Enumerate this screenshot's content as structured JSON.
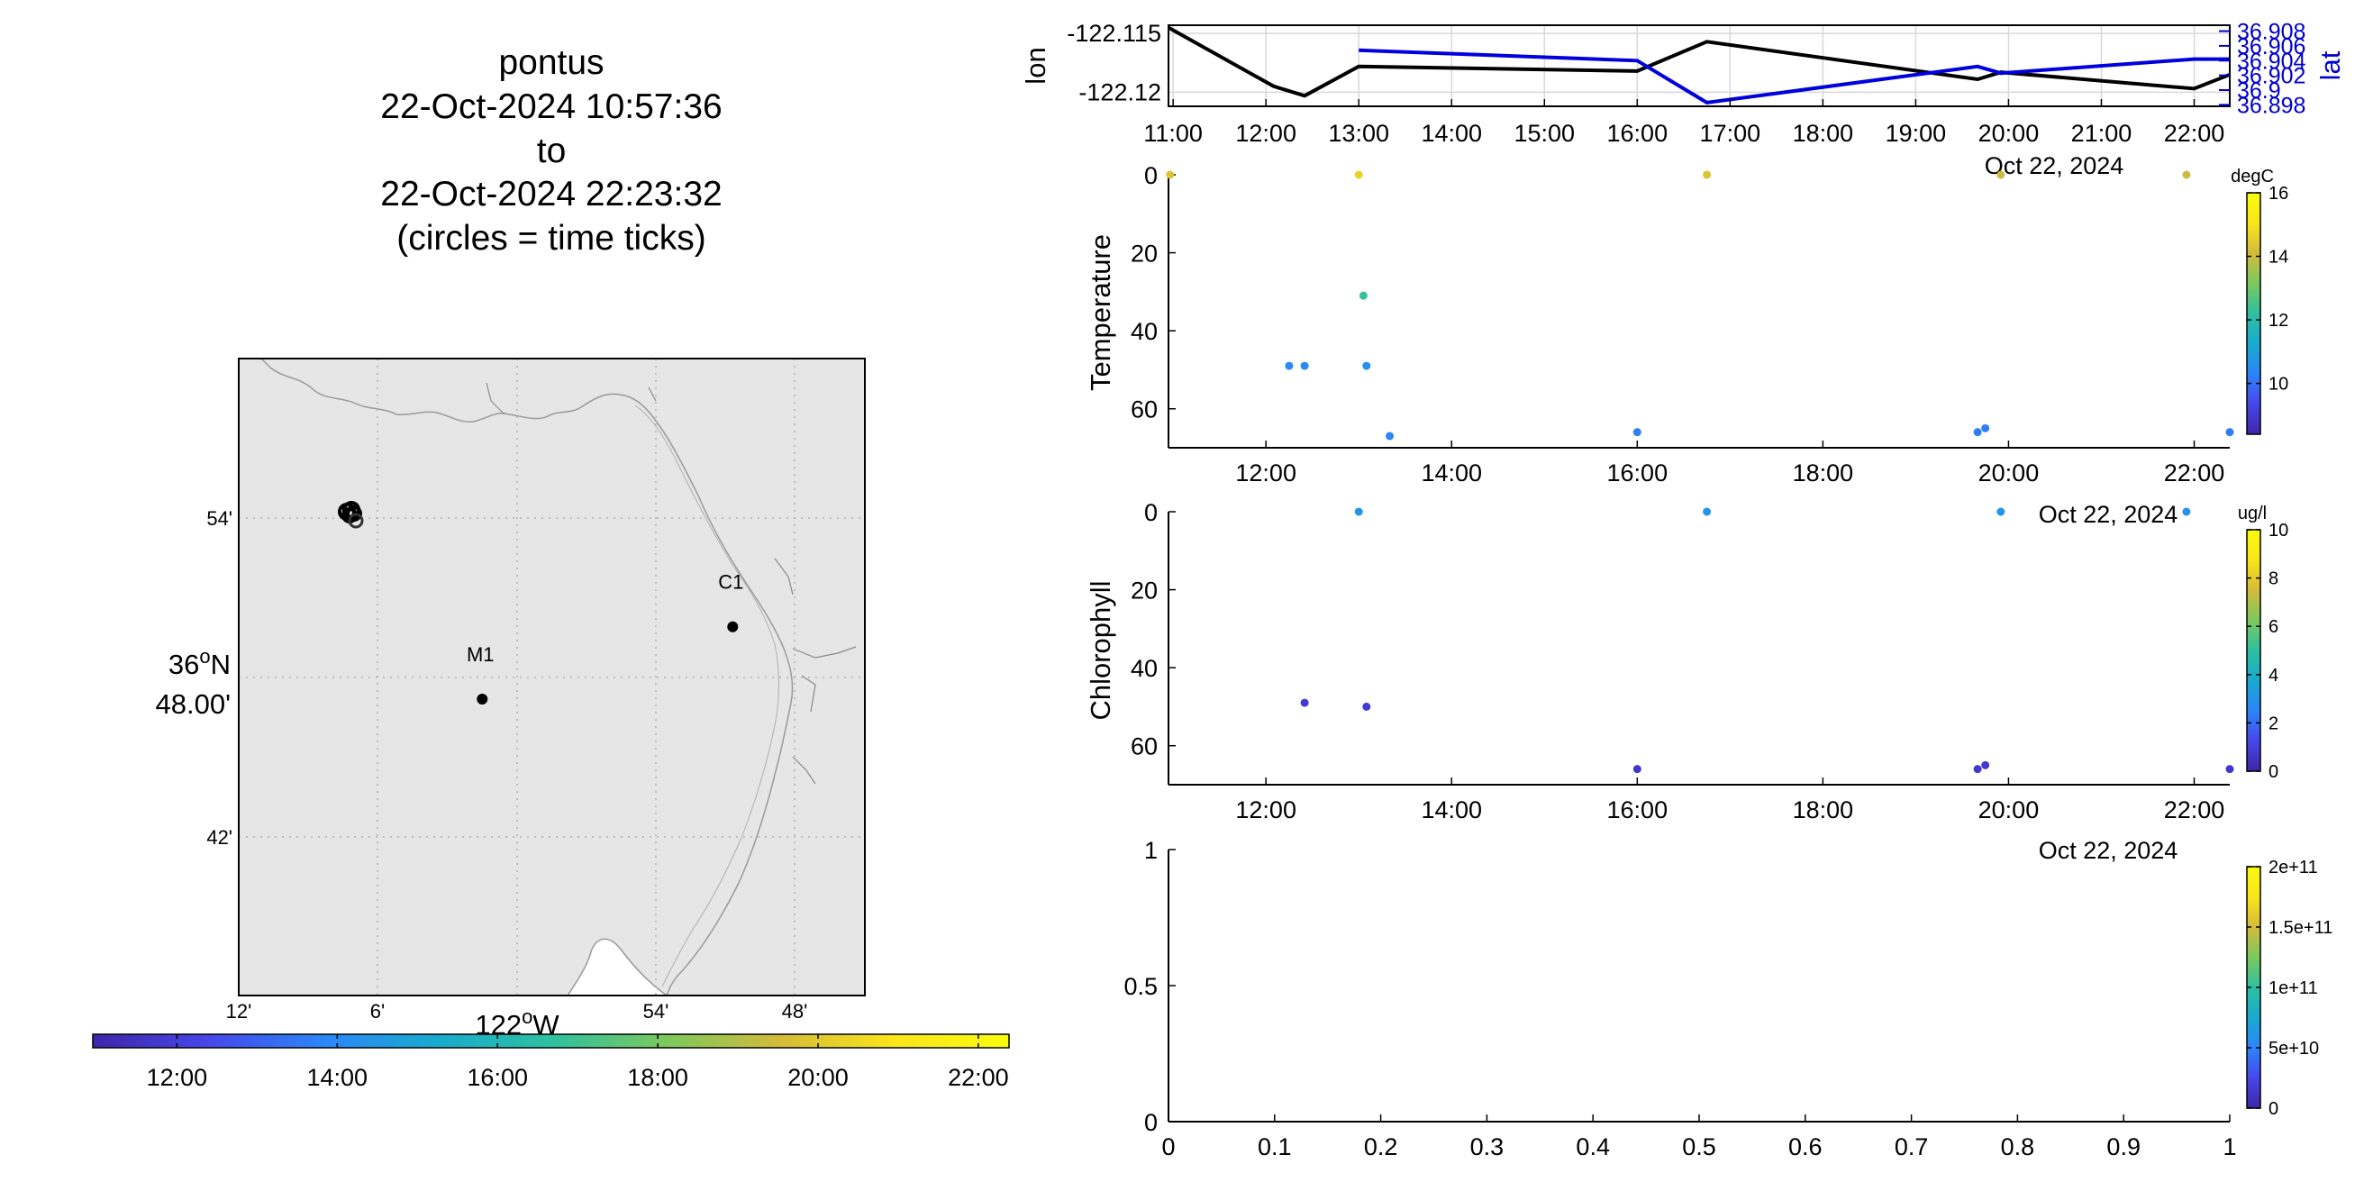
{
  "header": {
    "lines": [
      "pontus",
      "22-Oct-2024 10:57:36",
      "to",
      "22-Oct-2024 22:23:32",
      "(circles = time ticks)"
    ]
  },
  "colors": {
    "land": "#e6e6e6",
    "lon_line": "#000000",
    "lat_line": "#0000dd",
    "viridis_like": [
      "#3e26a8",
      "#4746eb",
      "#2c85f8",
      "#19aacf",
      "#2ec0a0",
      "#7bc95e",
      "#d4bb3a",
      "#fbe51a",
      "#f9fb0e"
    ]
  },
  "map": {
    "lat_ticks": [
      "54'",
      "42'"
    ],
    "lat_center_label": {
      "deg": "36",
      "sup": "o",
      "hemi": "N",
      "min": "48.00'"
    },
    "lon_ticks": [
      "12'",
      "6'",
      "54'",
      "48'"
    ],
    "lon_center_label": {
      "deg": "122",
      "sup": "o",
      "hemi": "W"
    },
    "stations": [
      {
        "name": "M1",
        "lon": -122.025,
        "lat": 36.745
      },
      {
        "name": "C1",
        "lon": -121.845,
        "lat": 36.797
      }
    ],
    "time_colorbar": {
      "ticks": [
        "12:00",
        "14:00",
        "16:00",
        "18:00",
        "20:00",
        "22:00"
      ]
    }
  },
  "chart_data": [
    {
      "type": "line",
      "ylabel": "lon",
      "y2label": "lat",
      "x_ticks": [
        "11:00",
        "12:00",
        "13:00",
        "14:00",
        "15:00",
        "16:00",
        "17:00",
        "18:00",
        "19:00",
        "20:00",
        "21:00",
        "22:00"
      ],
      "date_label": "Oct 22, 2024",
      "y_ticks": [
        "-122.115",
        "-122.12"
      ],
      "y2_ticks": [
        "36.908",
        "36.906",
        "36.904",
        "36.902",
        "36.9",
        "36.898"
      ],
      "series": [
        {
          "name": "lon",
          "x": [
            "10:57",
            "12:05",
            "12:25",
            "13:00",
            "16:00",
            "16:45",
            "19:40",
            "19:55",
            "22:00",
            "22:23"
          ],
          "values": [
            -122.1145,
            -122.1195,
            -122.1203,
            -122.1178,
            -122.1182,
            -122.1157,
            -122.1189,
            -122.1183,
            -122.1197,
            -122.1185
          ]
        },
        {
          "name": "lat",
          "x": [
            "13:00",
            "16:00",
            "16:45",
            "19:40",
            "19:55",
            "22:00",
            "22:23"
          ],
          "values": [
            36.9054,
            36.904,
            36.8983,
            36.9032,
            36.9023,
            36.9042,
            36.9042
          ]
        }
      ]
    },
    {
      "type": "scatter",
      "ylabel": "Temperature",
      "units": "degC",
      "x_ticks": [
        "12:00",
        "14:00",
        "16:00",
        "18:00",
        "20:00",
        "22:00"
      ],
      "date_label": "Oct 22, 2024",
      "y_ticks": [
        "0",
        "20",
        "40",
        "60"
      ],
      "ylim": [
        0,
        70
      ],
      "clim": [
        8.4,
        16
      ],
      "cbar_ticks": [
        "10",
        "12",
        "14",
        "16"
      ],
      "points": [
        {
          "t": "10:58",
          "depth": 0,
          "value": 14.3
        },
        {
          "t": "13:00",
          "depth": 0,
          "value": 14.6
        },
        {
          "t": "16:45",
          "depth": 0,
          "value": 14.3
        },
        {
          "t": "19:55",
          "depth": 0,
          "value": 14.0
        },
        {
          "t": "21:55",
          "depth": 0,
          "value": 14.0
        },
        {
          "t": "13:03",
          "depth": 31,
          "value": 12.3
        },
        {
          "t": "12:15",
          "depth": 49,
          "value": 10.4
        },
        {
          "t": "12:25",
          "depth": 49,
          "value": 10.4
        },
        {
          "t": "13:05",
          "depth": 49,
          "value": 10.6
        },
        {
          "t": "13:20",
          "depth": 67,
          "value": 10.3
        },
        {
          "t": "16:00",
          "depth": 66,
          "value": 10.2
        },
        {
          "t": "19:40",
          "depth": 66,
          "value": 10.2
        },
        {
          "t": "19:45",
          "depth": 65,
          "value": 10.2
        },
        {
          "t": "22:23",
          "depth": 66,
          "value": 10.2
        }
      ]
    },
    {
      "type": "scatter",
      "ylabel": "Chlorophyll",
      "units": "ug/l",
      "x_ticks": [
        "12:00",
        "14:00",
        "16:00",
        "18:00",
        "20:00",
        "22:00"
      ],
      "date_label": "Oct 22, 2024",
      "y_ticks": [
        "0",
        "20",
        "40",
        "60"
      ],
      "ylim": [
        0,
        70
      ],
      "clim": [
        0,
        10
      ],
      "cbar_ticks": [
        "0",
        "2",
        "4",
        "6",
        "8",
        "10"
      ],
      "points": [
        {
          "t": "13:00",
          "depth": 0,
          "value": 3.0
        },
        {
          "t": "16:45",
          "depth": 0,
          "value": 3.0
        },
        {
          "t": "19:55",
          "depth": 0,
          "value": 3.0
        },
        {
          "t": "21:55",
          "depth": 0,
          "value": 3.0
        },
        {
          "t": "12:25",
          "depth": 49,
          "value": 0.8
        },
        {
          "t": "13:05",
          "depth": 50,
          "value": 0.8
        },
        {
          "t": "16:00",
          "depth": 66,
          "value": 0.7
        },
        {
          "t": "19:40",
          "depth": 66,
          "value": 0.7
        },
        {
          "t": "19:45",
          "depth": 65,
          "value": 0.7
        },
        {
          "t": "22:23",
          "depth": 66,
          "value": 0.7
        }
      ]
    },
    {
      "type": "scatter",
      "x_ticks": [
        "0",
        "0.1",
        "0.2",
        "0.3",
        "0.4",
        "0.5",
        "0.6",
        "0.7",
        "0.8",
        "0.9",
        "1"
      ],
      "y_ticks": [
        "0",
        "0.5",
        "1"
      ],
      "xlim": [
        0,
        1
      ],
      "ylim": [
        0,
        1
      ],
      "cbar_ticks": [
        "0",
        "5e+10",
        "1e+11",
        "1.5e+11",
        "2e+11"
      ],
      "points": []
    }
  ]
}
